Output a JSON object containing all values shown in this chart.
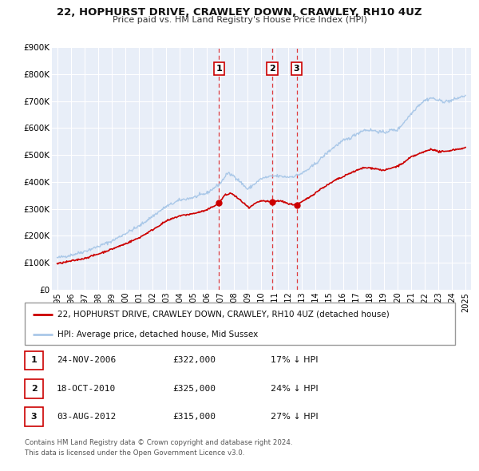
{
  "title": "22, HOPHURST DRIVE, CRAWLEY DOWN, CRAWLEY, RH10 4UZ",
  "subtitle": "Price paid vs. HM Land Registry's House Price Index (HPI)",
  "hpi_label": "HPI: Average price, detached house, Mid Sussex",
  "property_label": "22, HOPHURST DRIVE, CRAWLEY DOWN, CRAWLEY, RH10 4UZ (detached house)",
  "hpi_color": "#aac8e8",
  "property_color": "#cc0000",
  "background_color": "#e8eef8",
  "grid_color": "#ffffff",
  "transactions": [
    {
      "num": 1,
      "date": "24-NOV-2006",
      "price": 322000,
      "pct": "17%",
      "year": 2006.9
    },
    {
      "num": 2,
      "date": "18-OCT-2010",
      "price": 325000,
      "pct": "24%",
      "year": 2010.8
    },
    {
      "num": 3,
      "date": "03-AUG-2012",
      "price": 315000,
      "pct": "27%",
      "year": 2012.6
    }
  ],
  "footer": [
    "Contains HM Land Registry data © Crown copyright and database right 2024.",
    "This data is licensed under the Open Government Licence v3.0."
  ],
  "ylim": [
    0,
    900000
  ],
  "yticks": [
    0,
    100000,
    200000,
    300000,
    400000,
    500000,
    600000,
    700000,
    800000,
    900000
  ],
  "ytick_labels": [
    "£0",
    "£100K",
    "£200K",
    "£300K",
    "£400K",
    "£500K",
    "£600K",
    "£700K",
    "£800K",
    "£900K"
  ],
  "xlim_start": 1994.6,
  "xlim_end": 2025.4,
  "hpi_points": [
    [
      1995.0,
      118000
    ],
    [
      1996.0,
      128000
    ],
    [
      1997.0,
      142000
    ],
    [
      1998.0,
      160000
    ],
    [
      1999.0,
      180000
    ],
    [
      2000.0,
      208000
    ],
    [
      2001.0,
      235000
    ],
    [
      2002.0,
      272000
    ],
    [
      2003.0,
      308000
    ],
    [
      2004.0,
      332000
    ],
    [
      2005.0,
      342000
    ],
    [
      2006.0,
      358000
    ],
    [
      2007.0,
      395000
    ],
    [
      2007.5,
      432000
    ],
    [
      2008.0,
      422000
    ],
    [
      2008.5,
      398000
    ],
    [
      2009.0,
      372000
    ],
    [
      2009.5,
      392000
    ],
    [
      2010.0,
      412000
    ],
    [
      2010.5,
      418000
    ],
    [
      2011.0,
      422000
    ],
    [
      2011.5,
      420000
    ],
    [
      2012.0,
      418000
    ],
    [
      2012.5,
      422000
    ],
    [
      2013.0,
      432000
    ],
    [
      2013.5,
      448000
    ],
    [
      2014.0,
      468000
    ],
    [
      2014.5,
      492000
    ],
    [
      2015.0,
      515000
    ],
    [
      2015.5,
      535000
    ],
    [
      2016.0,
      552000
    ],
    [
      2016.5,
      562000
    ],
    [
      2017.0,
      578000
    ],
    [
      2017.5,
      592000
    ],
    [
      2018.0,
      592000
    ],
    [
      2018.5,
      588000
    ],
    [
      2019.0,
      582000
    ],
    [
      2019.5,
      592000
    ],
    [
      2020.0,
      592000
    ],
    [
      2020.5,
      622000
    ],
    [
      2021.0,
      652000
    ],
    [
      2021.5,
      682000
    ],
    [
      2022.0,
      702000
    ],
    [
      2022.5,
      712000
    ],
    [
      2023.0,
      702000
    ],
    [
      2023.5,
      698000
    ],
    [
      2024.0,
      702000
    ],
    [
      2024.5,
      712000
    ],
    [
      2025.0,
      720000
    ]
  ],
  "prop_points": [
    [
      1995.0,
      96000
    ],
    [
      1996.0,
      106000
    ],
    [
      1997.0,
      116000
    ],
    [
      1998.0,
      132000
    ],
    [
      1999.0,
      150000
    ],
    [
      2000.0,
      170000
    ],
    [
      2001.0,
      192000
    ],
    [
      2002.0,
      222000
    ],
    [
      2003.0,
      254000
    ],
    [
      2004.0,
      274000
    ],
    [
      2005.0,
      282000
    ],
    [
      2006.0,
      295000
    ],
    [
      2006.9,
      322000
    ],
    [
      2007.3,
      350000
    ],
    [
      2007.8,
      358000
    ],
    [
      2008.2,
      342000
    ],
    [
      2008.7,
      322000
    ],
    [
      2009.1,
      302000
    ],
    [
      2009.5,
      318000
    ],
    [
      2010.0,
      330000
    ],
    [
      2010.8,
      325000
    ],
    [
      2011.2,
      330000
    ],
    [
      2011.7,
      326000
    ],
    [
      2012.0,
      318000
    ],
    [
      2012.6,
      315000
    ],
    [
      2013.0,
      326000
    ],
    [
      2013.5,
      342000
    ],
    [
      2014.0,
      360000
    ],
    [
      2014.5,
      378000
    ],
    [
      2015.0,
      392000
    ],
    [
      2015.5,
      408000
    ],
    [
      2016.0,
      418000
    ],
    [
      2016.5,
      432000
    ],
    [
      2017.0,
      442000
    ],
    [
      2017.5,
      452000
    ],
    [
      2018.0,
      452000
    ],
    [
      2018.5,
      448000
    ],
    [
      2019.0,
      442000
    ],
    [
      2019.5,
      450000
    ],
    [
      2020.0,
      458000
    ],
    [
      2020.5,
      472000
    ],
    [
      2021.0,
      492000
    ],
    [
      2021.5,
      502000
    ],
    [
      2022.0,
      512000
    ],
    [
      2022.5,
      522000
    ],
    [
      2023.0,
      512000
    ],
    [
      2023.5,
      512000
    ],
    [
      2024.0,
      518000
    ],
    [
      2024.5,
      522000
    ],
    [
      2025.0,
      526000
    ]
  ]
}
